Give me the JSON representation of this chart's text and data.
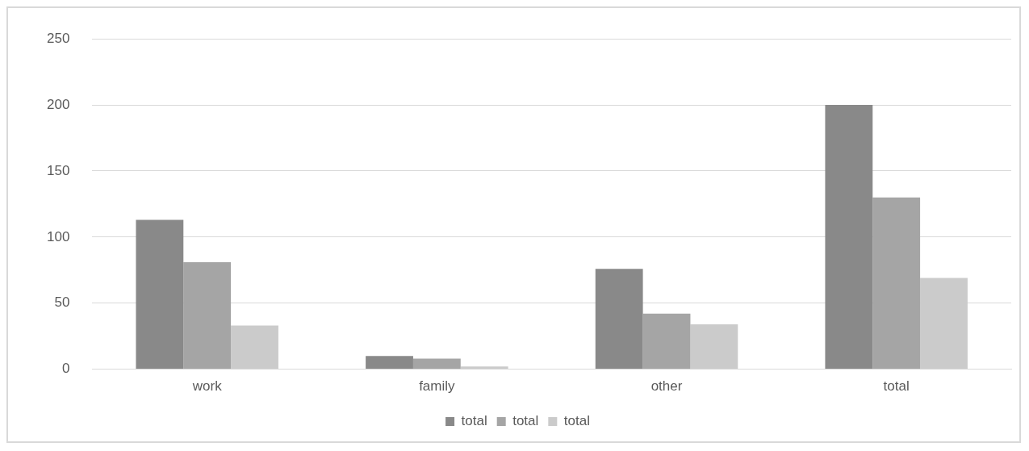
{
  "chart_data": {
    "type": "bar",
    "categories": [
      "work",
      "family",
      "other",
      "total"
    ],
    "series": [
      {
        "name": "total",
        "color": "#898989",
        "values": [
          113,
          10,
          76,
          200
        ]
      },
      {
        "name": "total",
        "color": "#a5a5a5",
        "values": [
          81,
          8,
          42,
          130
        ]
      },
      {
        "name": "total",
        "color": "#cbcbcb",
        "values": [
          33,
          2,
          34,
          69
        ]
      }
    ],
    "ylim": [
      0,
      250
    ],
    "yticks": [
      0,
      50,
      100,
      150,
      200,
      250
    ],
    "grid": "y",
    "legend": "bottom"
  }
}
